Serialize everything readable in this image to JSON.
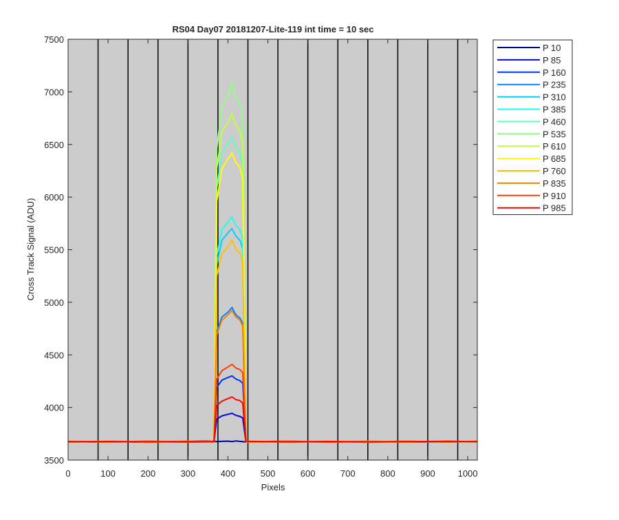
{
  "chart_data": {
    "type": "line",
    "title": "RS04 Day07 20181207-Lite-119 int time = 10 sec",
    "x_label": "Pixels",
    "y_label": "Cross Track Signal (ADU)",
    "xlim": [
      0,
      1024
    ],
    "ylim": [
      3500,
      7500
    ],
    "xticks": [
      0,
      100,
      200,
      300,
      400,
      500,
      600,
      700,
      800,
      900,
      1000
    ],
    "yticks": [
      3500,
      4000,
      4500,
      5000,
      5500,
      6000,
      6500,
      7000,
      7500
    ],
    "vertical_lines": [
      75,
      150,
      225,
      300,
      375,
      450,
      525,
      600,
      675,
      750,
      825,
      900,
      975
    ],
    "background": "#cccccc",
    "legend_position": "outside-right",
    "x": [
      0,
      100,
      200,
      300,
      365,
      372,
      385,
      400,
      410,
      420,
      430,
      437,
      445,
      550,
      650,
      750,
      850,
      950,
      1024
    ],
    "series": [
      {
        "name": "P 10",
        "color": "#00008f",
        "values": [
          3672,
          3676,
          3670,
          3678,
          3680,
          3675,
          3678,
          3680,
          3676,
          3682,
          3678,
          3675,
          3672,
          3674,
          3677,
          3671,
          3676,
          3673,
          3678
        ]
      },
      {
        "name": "P 85",
        "color": "#0000df",
        "values": [
          3675,
          3670,
          3678,
          3673,
          3676,
          3890,
          3920,
          3935,
          3945,
          3925,
          3915,
          3900,
          3674,
          3679,
          3672,
          3677,
          3670,
          3675,
          3673
        ]
      },
      {
        "name": "P 160",
        "color": "#0030ff",
        "values": [
          3678,
          3673,
          3675,
          3670,
          3674,
          4190,
          4260,
          4285,
          4300,
          4270,
          4255,
          4230,
          3677,
          3671,
          3676,
          3674,
          3678,
          3672,
          3676
        ]
      },
      {
        "name": "P 235",
        "color": "#0080ff",
        "values": [
          3670,
          3677,
          3672,
          3676,
          3678,
          4720,
          4860,
          4905,
          4950,
          4880,
          4850,
          4800,
          3673,
          3676,
          3670,
          3679,
          3673,
          3677,
          3671
        ]
      },
      {
        "name": "P 310",
        "color": "#00cfff",
        "values": [
          3676,
          3671,
          3679,
          3674,
          3672,
          5360,
          5590,
          5660,
          5700,
          5630,
          5590,
          5510,
          3678,
          3672,
          3677,
          3671,
          3675,
          3670,
          3677
        ]
      },
      {
        "name": "P 385",
        "color": "#20ffef",
        "values": [
          3673,
          3678,
          3671,
          3677,
          3675,
          5440,
          5690,
          5760,
          5810,
          5730,
          5690,
          5600,
          3671,
          3678,
          3674,
          3676,
          3672,
          3679,
          3674
        ]
      },
      {
        "name": "P 460",
        "color": "#60ffc0",
        "values": [
          3677,
          3672,
          3676,
          3671,
          3679,
          6080,
          6420,
          6510,
          6570,
          6470,
          6420,
          6300,
          3676,
          3673,
          3678,
          3672,
          3677,
          3674,
          3670
        ]
      },
      {
        "name": "P 535",
        "color": "#90ff80",
        "values": [
          3671,
          3675,
          3673,
          3679,
          3673,
          6460,
          6860,
          6960,
          7080,
          6930,
          6880,
          6740,
          3672,
          3677,
          3671,
          3678,
          3674,
          3676,
          3675
        ]
      },
      {
        "name": "P 610",
        "color": "#c0ff40",
        "values": [
          3679,
          3674,
          3677,
          3672,
          3676,
          6270,
          6620,
          6710,
          6790,
          6680,
          6630,
          6500,
          3679,
          3671,
          3675,
          3673,
          3671,
          3678,
          3672
        ]
      },
      {
        "name": "P 685",
        "color": "#ffff00",
        "values": [
          3674,
          3679,
          3670,
          3676,
          3671,
          5960,
          6270,
          6360,
          6420,
          6330,
          6280,
          6170,
          3675,
          3678,
          3672,
          3677,
          3676,
          3671,
          3679
        ]
      },
      {
        "name": "P 760",
        "color": "#ffc000",
        "values": [
          3676,
          3671,
          3678,
          3673,
          3677,
          5250,
          5460,
          5530,
          5590,
          5500,
          5470,
          5390,
          3670,
          3674,
          3679,
          3671,
          3678,
          3673,
          3676
        ]
      },
      {
        "name": "P 835",
        "color": "#ff8000",
        "values": [
          3672,
          3678,
          3674,
          3679,
          3674,
          4690,
          4830,
          4880,
          4920,
          4860,
          4830,
          4770,
          3677,
          3672,
          3676,
          3678,
          3671,
          3677,
          3673
        ]
      },
      {
        "name": "P 910",
        "color": "#ff4000",
        "values": [
          3677,
          3673,
          3679,
          3671,
          3678,
          4270,
          4350,
          4385,
          4410,
          4375,
          4360,
          4330,
          3673,
          3679,
          3671,
          3674,
          3677,
          3672,
          3678
        ]
      },
      {
        "name": "P 985",
        "color": "#ff0000",
        "values": [
          3674,
          3677,
          3672,
          3676,
          3673,
          4020,
          4060,
          4085,
          4100,
          4075,
          4065,
          4040,
          3678,
          3673,
          3677,
          3672,
          3675,
          3679,
          3674
        ]
      }
    ]
  }
}
